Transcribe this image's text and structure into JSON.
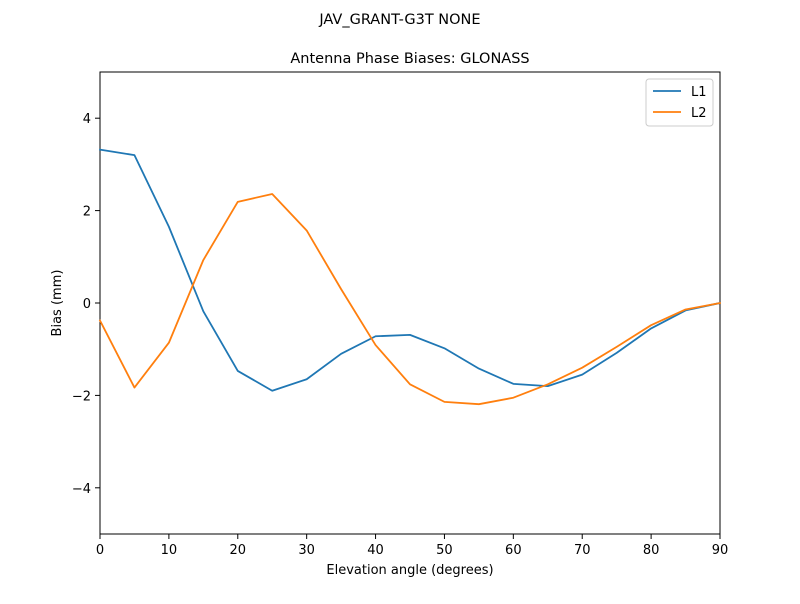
{
  "suptitle": "JAV_GRANT-G3T   NONE",
  "chart_data": {
    "type": "line",
    "title": "Antenna Phase Biases: GLONASS",
    "xlabel": "Elevation angle (degrees)",
    "ylabel": "Bias (mm)",
    "xlim": [
      0,
      90
    ],
    "ylim": [
      -5,
      5
    ],
    "xticks": [
      0,
      10,
      20,
      30,
      40,
      50,
      60,
      70,
      80,
      90
    ],
    "yticks": [
      -4,
      -2,
      0,
      2,
      4
    ],
    "xtick_labels": [
      "0",
      "10",
      "20",
      "30",
      "40",
      "50",
      "60",
      "70",
      "80",
      "90"
    ],
    "ytick_labels": [
      "−4",
      "−2",
      "0",
      "2",
      "4"
    ],
    "grid": false,
    "legend_position": "top-right",
    "x": [
      0,
      5,
      10,
      15,
      20,
      25,
      30,
      35,
      40,
      45,
      50,
      55,
      60,
      65,
      70,
      75,
      80,
      85,
      90
    ],
    "series": [
      {
        "name": "L1",
        "color": "#1f77b4",
        "values": [
          3.32,
          3.2,
          1.65,
          -0.18,
          -1.47,
          -1.9,
          -1.65,
          -1.1,
          -0.72,
          -0.69,
          -0.98,
          -1.42,
          -1.75,
          -1.8,
          -1.55,
          -1.08,
          -0.55,
          -0.16,
          0.0
        ]
      },
      {
        "name": "L2",
        "color": "#ff7f0e",
        "values": [
          -0.38,
          -1.83,
          -0.86,
          0.93,
          2.19,
          2.36,
          1.57,
          0.3,
          -0.91,
          -1.76,
          -2.14,
          -2.19,
          -2.05,
          -1.76,
          -1.4,
          -0.95,
          -0.48,
          -0.14,
          0.0
        ]
      }
    ]
  }
}
